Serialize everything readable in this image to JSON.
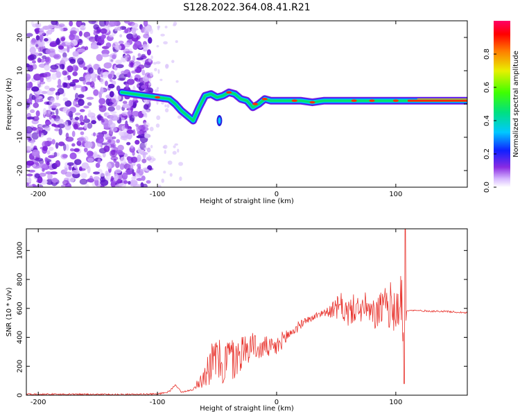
{
  "figure": {
    "title": "S128.2022.364.08.41.R21"
  },
  "chart_data": [
    {
      "type": "heatmap",
      "xlabel": "Height of straight line (km)",
      "ylabel": "Frequency (Hz)",
      "xlim": [
        -210,
        160
      ],
      "ylim": [
        -25,
        25
      ],
      "xticks": [
        -200,
        -100,
        0,
        100
      ],
      "yticks": [
        -20,
        -10,
        0,
        10,
        20
      ],
      "grid": false,
      "ridge": {
        "x": [
          -130,
          -120,
          -110,
          -100,
          -90,
          -85,
          -80,
          -75,
          -70,
          -65,
          -60,
          -55,
          -50,
          -45,
          -40,
          -35,
          -30,
          -25,
          -20,
          -15,
          -10,
          -5,
          0,
          10,
          20,
          30,
          40,
          50,
          60,
          70,
          80,
          90,
          100,
          110,
          120,
          130,
          140,
          150,
          160
        ],
        "y": [
          3.5,
          3,
          2.5,
          2,
          1.5,
          0,
          -2,
          -3.5,
          -5,
          -1,
          2.5,
          3,
          2,
          2.5,
          3.5,
          3,
          1.5,
          1,
          -1,
          0,
          1.5,
          1,
          1,
          1,
          1,
          0.5,
          1,
          1,
          1,
          1,
          1,
          1,
          1,
          1,
          1,
          1,
          1,
          1,
          1
        ]
      },
      "colorbar": {
        "label": "Normalized spectral amplitude",
        "range": [
          0,
          1
        ],
        "ticks": [
          "0.0",
          "0.2",
          "0.4",
          "0.6",
          "0.8"
        ]
      }
    },
    {
      "type": "line",
      "xlabel": "Height of straight line (km)",
      "ylabel": "SNR (10 * v/v)",
      "xlim": [
        -210,
        160
      ],
      "ylim": [
        0,
        1150
      ],
      "xticks": [
        -200,
        -100,
        0,
        100
      ],
      "yticks": [
        0,
        200,
        400,
        600,
        800,
        1000
      ],
      "grid": false,
      "series": [
        {
          "color": "#e8342e",
          "x": [
            -210,
            -180,
            -150,
            -120,
            -100,
            -90,
            -85,
            -80,
            -75,
            -70,
            -65,
            -60,
            -55,
            -50,
            -45,
            -40,
            -35,
            -30,
            -25,
            -20,
            -15,
            -10,
            -5,
            0,
            5,
            10,
            15,
            20,
            25,
            30,
            35,
            40,
            45,
            50,
            55,
            60,
            65,
            70,
            75,
            80,
            85,
            90,
            95,
            100,
            105,
            107,
            109,
            112,
            120,
            130,
            140,
            150,
            160
          ],
          "y": [
            8,
            6,
            5,
            5,
            8,
            25,
            75,
            20,
            30,
            40,
            100,
            160,
            220,
            260,
            200,
            280,
            230,
            300,
            320,
            360,
            300,
            340,
            320,
            330,
            380,
            420,
            450,
            490,
            520,
            530,
            560,
            570,
            580,
            600,
            610,
            560,
            600,
            590,
            610,
            540,
            580,
            600,
            620,
            600,
            650,
            240,
            580,
            585,
            585,
            580,
            580,
            575,
            570
          ],
          "spikes": {
            "amplitude": [
              0,
              0,
              0,
              0,
              0,
              0,
              0,
              0,
              0,
              0,
              50,
              100,
              140,
              150,
              150,
              150,
              150,
              130,
              110,
              90,
              70,
              70,
              70,
              70,
              60,
              50,
              40,
              30,
              20,
              20,
              20,
              30,
              40,
              80,
              100,
              100,
              100,
              90,
              100,
              110,
              120,
              140,
              160,
              180,
              200,
              0,
              0,
              0,
              0,
              0,
              0,
              0,
              0
            ],
            "peak": {
              "x": 108,
              "y": 1150
            },
            "trough": {
              "x": 107,
              "y": 80
            }
          }
        }
      ]
    }
  ]
}
